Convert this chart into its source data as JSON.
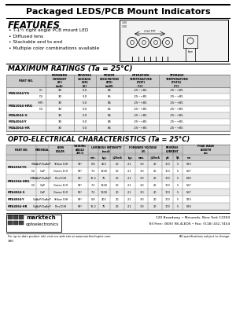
{
  "title": "Packaged LEDS/PCB Mount Indicators",
  "features_title": "FEATURES",
  "features": [
    "T-1½ right angle PCB mount LED",
    "Diffused lens",
    "Stackable end to end",
    "Multiple color combinations available"
  ],
  "max_ratings_title": "MAXIMUM RATINGS (Ta = 25°C)",
  "opto_title": "OPTO-ELECTRICAL CHARACTERISTICS (Ta = 25°C)",
  "mr_col_headers": [
    "PART NO.",
    "FORWARD\nCURRENT\n(IF)\n(mA)",
    "REVERSE\nVOLTAGE\n(VR)\n(V)",
    "POWER\nDISSIPATION\n(PD)\n(mW)",
    "OPERATING\nTEMPERATURE\n(TOP)\n(°C)",
    "STORAGE\nTEMPERATURE\n(TSTG)\n(°C)"
  ],
  "mr_col_widths": [
    50,
    36,
    28,
    34,
    46,
    46
  ],
  "mr_rows": [
    [
      "MTA1064-YG",
      "(Y)",
      "30",
      "5.0",
      "85",
      "-25~+85",
      "-25~+85"
    ],
    [
      "",
      "(G)",
      "30",
      "5.0",
      "65",
      "-25~+85",
      "-25~+85"
    ],
    [
      "MTA1064-HRG",
      "(HR)",
      "30",
      "5.0",
      "85",
      "-25~+85",
      "-25~+85"
    ],
    [
      "",
      "(G)",
      "30",
      "5.0",
      "65",
      "-25~+85",
      "-25~+85"
    ],
    [
      "MTA4064-G",
      "",
      "30",
      "5.0",
      "85",
      "-25~+85",
      "-25~+85"
    ],
    [
      "MTA4064-Y",
      "",
      "30",
      "5.0",
      "85",
      "-25~+85",
      "-25~+85"
    ],
    [
      "MTA4064-HR",
      "",
      "30",
      "5.0",
      "85",
      "-25~+85",
      "-25~+85"
    ]
  ],
  "mr_part_spans": [
    [
      0,
      2,
      "MTA1064-YG"
    ],
    [
      2,
      4,
      "MTA1064-HRG"
    ],
    [
      4,
      5,
      "MTA4064-G"
    ],
    [
      5,
      6,
      "MTA4064-Y"
    ],
    [
      6,
      7,
      "MTA4064-HR"
    ]
  ],
  "opto_top_headers": [
    [
      0,
      1,
      "PART NO."
    ],
    [
      1,
      1,
      "MATERIAL"
    ],
    [
      2,
      1,
      "LENS\nCOLOR"
    ],
    [
      3,
      1,
      "VIEWING\nANGLE\n2θ1/2"
    ],
    [
      4,
      3,
      "LUMINOUS INTENSITY\n(mcd)"
    ],
    [
      7,
      3,
      "FORWARD VOLTAGE\n(V)"
    ],
    [
      10,
      2,
      "REVERSE\nCURRENT"
    ],
    [
      12,
      1,
      "PEAK WAVE\nLENGTH\nnm"
    ]
  ],
  "opto_sub_headers": [
    "",
    "",
    "",
    "",
    "min.",
    "typ.",
    "@20mA",
    "typ.",
    "max.",
    "@20mA",
    "μA",
    "Vβ",
    "nm"
  ],
  "opto_col_widths": [
    38,
    16,
    30,
    20,
    13,
    15,
    18,
    14,
    16,
    18,
    14,
    12,
    16
  ],
  "opto_rows": [
    [
      "MTA1064-YG",
      "(Y)",
      "GaAsP/GaAsP",
      "Yellow Diff",
      "90°",
      "0.8",
      "400",
      "20",
      "2.1",
      "3.0",
      "20",
      "100",
      "5",
      "583"
    ],
    [
      "",
      "(G)",
      "GaP",
      "Green Diff",
      "90°",
      "7.2",
      "1100",
      "20",
      "2.1",
      "3.0",
      "20",
      "100",
      "5",
      "567"
    ],
    [
      "MTA1064-HRG",
      "(HR)",
      "GaAsP/GaAsP",
      "Red Diff",
      "90°",
      "16.2",
      "75",
      "20",
      "2.1",
      "3.0",
      "20",
      "100",
      "5",
      "630"
    ],
    [
      "",
      "(G)",
      "GaP",
      "Green Diff",
      "90°",
      "7.2",
      "1100",
      "20",
      "2.1",
      "3.0",
      "20",
      "100",
      "5",
      "567"
    ],
    [
      "MTA4064-G",
      "",
      "GaP",
      "Green Diff",
      "90°",
      "7.2",
      "1100",
      "20",
      "2.1",
      "3.0",
      "20",
      "100",
      "5",
      "567"
    ],
    [
      "MTA4064-Y",
      "",
      "GaAsP/GaAsP",
      "Yellow Diff",
      "90°",
      "0.8",
      "400",
      "20",
      "2.1",
      "3.0",
      "20",
      "100",
      "5",
      "583"
    ],
    [
      "MTA4064-HR",
      "",
      "GaAsP/GaAsP",
      "Red Diff",
      "90°",
      "16.2",
      "75",
      "20",
      "2.1",
      "3.0",
      "20",
      "100",
      "5",
      "630"
    ]
  ],
  "opto_part_spans": [
    [
      0,
      2,
      "MTA1064-YG"
    ],
    [
      2,
      4,
      "MTA1064-HRG"
    ],
    [
      4,
      5,
      "MTA4064-G"
    ],
    [
      5,
      6,
      "MTA4064-Y"
    ],
    [
      6,
      7,
      "MTA4064-HR"
    ]
  ],
  "footer_logo": [
    "marktech",
    "optoelectronics"
  ],
  "footer_address": "120 Broadway • Menands, New York 12204",
  "footer_phone": "Toll Free: (800) 98-4LEDS • Fax: (518) 432-7454",
  "footer_web": "For up-to-date product info visit our web site at www.marktechoptic.com",
  "footer_note": "All specifications subject to change.",
  "footer_page": "390",
  "bg": "#ffffff",
  "hdr_bg": "#cccccc",
  "alt_bg": "#e8e8e8",
  "border": "#666666"
}
